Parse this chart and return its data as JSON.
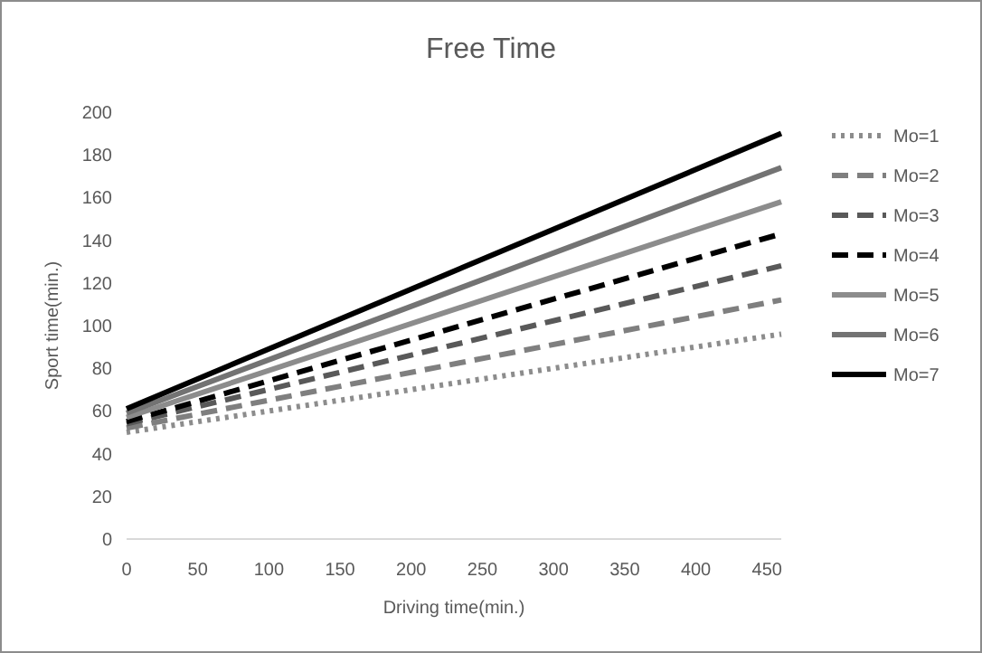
{
  "chart_data": {
    "type": "line",
    "title": "Free Time",
    "xlabel": "Driving time(min.)",
    "ylabel": "Sport time(min.)",
    "x": [
      0,
      460
    ],
    "series": [
      {
        "name": "Mo=1",
        "color": "#8c8c8c",
        "values": [
          50,
          96
        ],
        "line_style": "dotted"
      },
      {
        "name": "Mo=2",
        "color": "#7f7f7f",
        "values": [
          52,
          112
        ],
        "line_style": "dashed"
      },
      {
        "name": "Mo=3",
        "color": "#595959",
        "values": [
          54,
          128
        ],
        "line_style": "dashed"
      },
      {
        "name": "Mo=4",
        "color": "#000000",
        "values": [
          55,
          143
        ],
        "line_style": "dashed"
      },
      {
        "name": "Mo=5",
        "color": "#8c8c8c",
        "values": [
          57,
          158
        ],
        "line_style": "solid"
      },
      {
        "name": "Mo=6",
        "color": "#737373",
        "values": [
          59,
          174
        ],
        "line_style": "solid"
      },
      {
        "name": "Mo=7",
        "color": "#000000",
        "values": [
          61,
          190
        ],
        "line_style": "solid"
      }
    ],
    "xlim": [
      0,
      460
    ],
    "xticks": [
      0,
      50,
      100,
      150,
      200,
      250,
      300,
      350,
      400,
      450
    ],
    "ylim": [
      0,
      200
    ],
    "yticks": [
      0,
      20,
      40,
      60,
      80,
      100,
      120,
      140,
      160,
      180,
      200
    ],
    "grid": false,
    "legend": "right"
  }
}
